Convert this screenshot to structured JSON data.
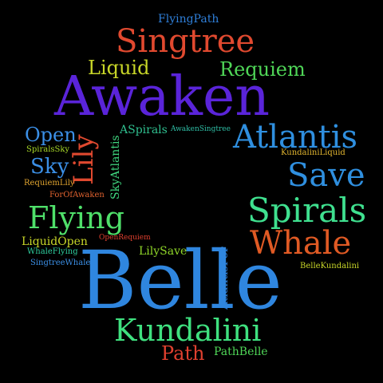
{
  "words": [
    {
      "text": "FlyingPath",
      "color": "#2f7fd9"
    },
    {
      "text": "Singtree",
      "color": "#e0492f"
    },
    {
      "text": "Liquid",
      "color": "#c8d628"
    },
    {
      "text": "Requiem",
      "color": "#4fd657"
    },
    {
      "text": "Awaken",
      "color": "#5a24d9"
    },
    {
      "text": "Open",
      "color": "#3b8fe6"
    },
    {
      "text": "ASpirals",
      "color": "#2fbf8f"
    },
    {
      "text": "AwakenSingtree",
      "color": "#2fbfa6"
    },
    {
      "text": "Atlantis",
      "color": "#2f8fdf"
    },
    {
      "text": "SpiralsSky",
      "color": "#a6d628"
    },
    {
      "text": "Lily",
      "color": "#e0492f"
    },
    {
      "text": "KundaliniLiquid",
      "color": "#e0b42f"
    },
    {
      "text": "Sky",
      "color": "#3b8fe6"
    },
    {
      "text": "SkyAtlantis",
      "color": "#3fd67f"
    },
    {
      "text": "Save",
      "color": "#2f8fdf"
    },
    {
      "text": "RequiemLily",
      "color": "#e0a42f"
    },
    {
      "text": "ForOfAwaken",
      "color": "#e0622f"
    },
    {
      "text": "Flying",
      "color": "#4fe06a"
    },
    {
      "text": "Spirals",
      "color": "#3fe08f"
    },
    {
      "text": "LiquidOpen",
      "color": "#c8d628"
    },
    {
      "text": "OpenRequiem",
      "color": "#e0402f"
    },
    {
      "text": "Whale",
      "color": "#e05a24"
    },
    {
      "text": "WhaleFlying",
      "color": "#2fcf9f"
    },
    {
      "text": "LilySave",
      "color": "#8fd628"
    },
    {
      "text": "AtlantisFor",
      "color": "#2f7fd9"
    },
    {
      "text": "SingtreeWhale",
      "color": "#3b8fe6"
    },
    {
      "text": "BelleKundalini",
      "color": "#c8d628"
    },
    {
      "text": "Belle",
      "color": "#2f86df"
    },
    {
      "text": "Kundalini",
      "color": "#3fe07f"
    },
    {
      "text": "Path",
      "color": "#e0402f"
    },
    {
      "text": "PathBelle",
      "color": "#4fd657"
    }
  ]
}
